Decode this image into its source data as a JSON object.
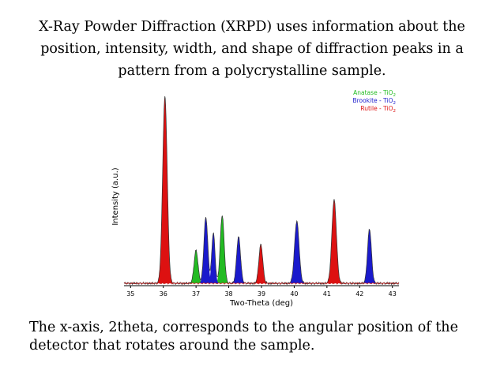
{
  "slide": {
    "header_lines": [
      "X-Ray Powder Diffraction (XRPD) uses information about the",
      "position, intensity, width, and shape of diffraction peaks in a",
      "pattern from a polycrystalline sample."
    ],
    "footer_lines": [
      "The x-axis, 2theta, corresponds to the angular position of the",
      "detector that rotates around the sample."
    ]
  },
  "chart_data": {
    "type": "area",
    "xlabel": "Two-Theta (deg)",
    "ylabel": "Intensity (a.u.)",
    "xlim": [
      34.8,
      43.2
    ],
    "ylim": [
      0,
      100
    ],
    "xticks": [
      "35",
      "36",
      "37",
      "38",
      "39",
      "40",
      "41",
      "42",
      "43"
    ],
    "legend_position": "top-right",
    "series": [
      {
        "name": "Anatase - TiO",
        "subscript": "2",
        "color": "#22bb22",
        "peaks": [
          {
            "center": 37.0,
            "height": 17,
            "width": 0.06
          },
          {
            "center": 37.8,
            "height": 35,
            "width": 0.06
          }
        ]
      },
      {
        "name": "Brookite - TiO",
        "subscript": "2",
        "color": "#1a1acc",
        "peaks": [
          {
            "center": 37.3,
            "height": 34,
            "width": 0.06
          },
          {
            "center": 37.53,
            "height": 26,
            "width": 0.05
          },
          {
            "center": 38.3,
            "height": 24,
            "width": 0.06
          },
          {
            "center": 40.08,
            "height": 32,
            "width": 0.07
          },
          {
            "center": 42.3,
            "height": 28,
            "width": 0.06
          }
        ]
      },
      {
        "name": "Rutile - TiO",
        "subscript": "2",
        "color": "#dd1111",
        "peaks": [
          {
            "center": 36.05,
            "height": 96,
            "width": 0.07
          },
          {
            "center": 38.98,
            "height": 20,
            "width": 0.06
          },
          {
            "center": 41.22,
            "height": 43,
            "width": 0.07
          }
        ]
      }
    ],
    "measured_color": "#333333"
  }
}
